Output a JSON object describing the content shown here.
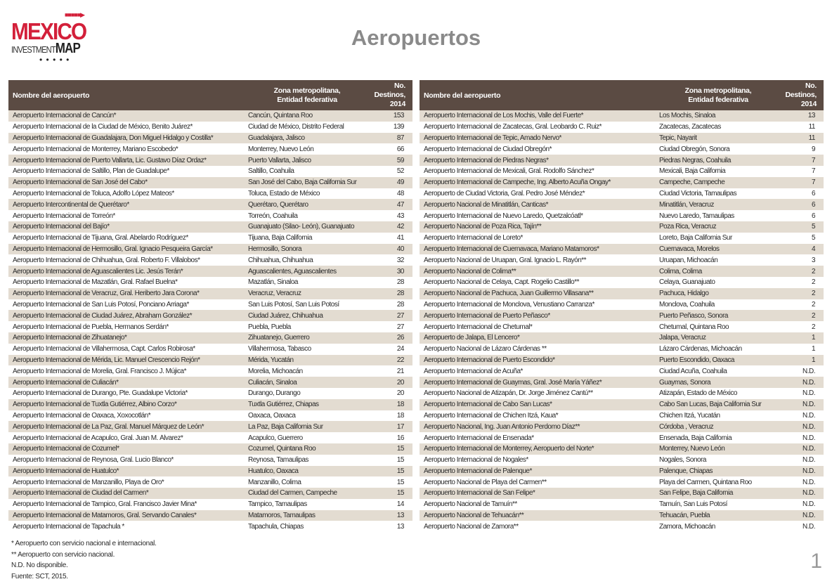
{
  "logo": {
    "text_top": "MEXICO",
    "text_left": "INVESTMENT",
    "text_right": "MAP"
  },
  "title": "Aeropuertos",
  "headers": {
    "name": "Nombre del aeropuerto",
    "zone_line1": "Zona metropolitana,",
    "zone_line2": "Entidad federativa",
    "dest_line1": "No. Destinos,",
    "dest_line2": "2014"
  },
  "left_rows": [
    [
      "Aeropuerto Internacional de Cancún*",
      "Cancún, Quintana Roo",
      "153"
    ],
    [
      "Aeropuerto Internacional de la Ciudad de México, Benito Juárez*",
      "Ciudad de México, Distrito Federal",
      "139"
    ],
    [
      "Aeropuerto Internacional de Guadalajara, Don Miguel Hidalgo y Costilla*",
      "Guadalajara, Jalisco",
      "87"
    ],
    [
      "Aeropuerto Internacional de Monterrey, Mariano Escobedo*",
      "Monterrey, Nuevo León",
      "66"
    ],
    [
      "Aeropuerto Internacional de Puerto Vallarta, Lic. Gustavo Díaz Ordaz*",
      "Puerto Vallarta, Jalisco",
      "59"
    ],
    [
      "Aeropuerto Internacional de Saltillo, Plan de Guadalupe*",
      "Saltillo, Coahuila",
      "52"
    ],
    [
      "Aeropuerto Internacional de San José del Cabo*",
      "San José del Cabo, Baja California Sur",
      "49"
    ],
    [
      "Aeropuerto Internacional de Toluca, Adolfo López Mateos*",
      "Toluca, Estado de México",
      "48"
    ],
    [
      "Aeropuerto Intercontinental de Querétaro*",
      "Querétaro, Querétaro",
      "47"
    ],
    [
      "Aeropuerto Internacional de Torreón*",
      "Torreón, Coahuila",
      "43"
    ],
    [
      "Aeropuerto Internacional del Bajío*",
      "Guanajuato (Silao- León), Guanajuato",
      "42"
    ],
    [
      "Aeropuerto Internacional de Tijuana, Gral. Abelardo Rodríguez*",
      "Tijuana, Baja California",
      "41"
    ],
    [
      "Aeropuerto Internacional de Hermosillo, Gral. Ignacio Pesqueira García*",
      "Hermosillo, Sonora",
      "40"
    ],
    [
      "Aeropuerto Internacional de Chihuahua, Gral. Roberto F. Villalobos*",
      "Chihuahua, Chihuahua",
      "32"
    ],
    [
      "Aeropuerto Internacional de Aguascalientes Lic. Jesús Terán*",
      "Aguascalientes, Aguascalientes",
      "30"
    ],
    [
      "Aeropuerto Internacional de Mazatlán, Gral. Rafael Buelna*",
      "Mazatlán, Sinaloa",
      "28"
    ],
    [
      "Aeropuerto Internacional de Veracruz, Gral. Heriberto Jara Corona*",
      "Veracruz, Veracruz",
      "28"
    ],
    [
      "Aeropuerto Internacional de San Luis Potosí, Ponciano Arriaga*",
      "San Luis Potosí, San Luis Potosí",
      "28"
    ],
    [
      "Aeropuerto Internacional de Ciudad Juárez, Abraham González*",
      "Ciudad Juárez, Chihuahua",
      "27"
    ],
    [
      "Aeropuerto Internacional de Puebla, Hermanos Serdán*",
      "Puebla, Puebla",
      "27"
    ],
    [
      "Aeropuerto Internacional de Zihuatanejo*",
      "Zihuatanejo, Guerrero",
      "26"
    ],
    [
      "Aeropuerto Internacional de Villahermosa, Capt. Carlos Robirosa*",
      "Villahermosa, Tabasco",
      "24"
    ],
    [
      "Aeropuerto Internacional de Mérida, Lic. Manuel Crescencio Rejón*",
      "Mérida, Yucatán",
      "22"
    ],
    [
      "Aeropuerto Internacional de Morelia, Gral. Francisco J. Mújica*",
      "Morelia, Michoacán",
      "21"
    ],
    [
      "Aeropuerto Internacional de Culiacán*",
      "Culiacán, Sinaloa",
      "20"
    ],
    [
      "Aeropuerto Internacional de Durango, Pte. Guadalupe Victoria*",
      "Durango, Durango",
      "20"
    ],
    [
      "Aeropuerto Internacional de Tuxtla Gutiérrez, Albino Corzo*",
      "Tuxtla Gutiérrez, Chiapas",
      "18"
    ],
    [
      "Aeropuerto Internacional de Oaxaca, Xoxocotlán*",
      "Oaxaca, Oaxaca",
      "18"
    ],
    [
      "Aeropuerto Internacional de La Paz, Gral. Manuel Márquez de León*",
      "La Paz, Baja California Sur",
      "17"
    ],
    [
      "Aeropuerto Internacional de Acapulco, Gral. Juan M. Álvarez*",
      "Acapulco, Guerrero",
      "16"
    ],
    [
      "Aeropuerto Internacional de Cozumel*",
      "Cozumel, Quintana Roo",
      "15"
    ],
    [
      "Aeropuerto Internacional de Reynosa, Gral. Lucio Blanco*",
      "Reynosa, Tamaulipas",
      "15"
    ],
    [
      "Aeropuerto Internacional de Huatulco*",
      "Huatulco, Oaxaca",
      "15"
    ],
    [
      "Aeropuerto Internacional de Manzanillo, Playa de Oro*",
      "Manzanillo, Colima",
      "15"
    ],
    [
      "Aeropuerto Internacional de Ciudad del Carmen*",
      "Ciudad del Carmen, Campeche",
      "15"
    ],
    [
      "Aeropuerto Internacional de Tampico, Gral. Francisco Javier Mina*",
      "Tampico, Tamaulipas",
      "14"
    ],
    [
      "Aeropuerto Internacional de Matamoros, Gral. Servando Canales*",
      "Matamoros, Tamaulipas",
      "13"
    ],
    [
      "Aeropuerto Internacional de Tapachula *",
      "Tapachula, Chiapas",
      "13"
    ]
  ],
  "right_rows": [
    [
      "Aeropuerto Internacional de Los Mochis, Valle del Fuerte*",
      "Los Mochis, Sinaloa",
      "13"
    ],
    [
      "Aeropuerto Internacional de Zacatecas, Gral. Leobardo C. Ruiz*",
      "Zacatecas, Zacatecas",
      "11"
    ],
    [
      "Aeropuerto Internacional de Tepic, Amado Nervo*",
      "Tepic, Nayarit",
      "11"
    ],
    [
      "Aeropuerto Internacional de Ciudad Obregón*",
      "Ciudad Obregón, Sonora",
      "9"
    ],
    [
      "Aeropuerto Internacional de Piedras Negras*",
      "Piedras Negras, Coahuila",
      "7"
    ],
    [
      "Aeropuerto Internacional de Mexicali, Gral. Rodolfo Sánchez*",
      "Mexicali, Baja California",
      "7"
    ],
    [
      "Aeropuerto Internacional de Campeche, Ing. Alberto Acuña Ongay*",
      "Campeche, Campeche",
      "7"
    ],
    [
      "Aeropuerto de Ciudad Victoria, Gral. Pedro José Méndez*",
      "Ciudad Victoria, Tamaulipas",
      "6"
    ],
    [
      "Aeropuerto Nacional de Minatitlán, Canticas*",
      "Minatitlán, Veracruz",
      "6"
    ],
    [
      "Aeropuerto Internacional de Nuevo Laredo, Quetzalcóatl*",
      "Nuevo Laredo, Tamaulipas",
      "6"
    ],
    [
      "Aeropuerto Nacional de Poza Rica, Tajín**",
      "Poza Rica, Veracruz",
      "5"
    ],
    [
      "Aeropuerto Internacional de Loreto*",
      "Loreto, Baja California Sur",
      "5"
    ],
    [
      "Aeropuerto Internacional de Cuernavaca, Mariano Matamoros*",
      "Cuernavaca, Morelos",
      "4"
    ],
    [
      "Aeropuerto Nacional de Uruapan, Gral. Ignacio L. Rayón**",
      "Uruapan, Michoacán",
      "3"
    ],
    [
      "Aeropuerto Nacional de Colima**",
      "Colima, Colima",
      "2"
    ],
    [
      "Aeropuerto Nacional de Celaya, Capt. Rogelio Castillo**",
      "Celaya, Guanajuato",
      "2"
    ],
    [
      "Aeropuerto Nacional de Pachuca, Juan Guillermo Villasana**",
      "Pachuca, Hidalgo",
      "2"
    ],
    [
      "Aeropuerto Internacional de Monclova, Venustiano Carranza*",
      "Monclova, Coahuila",
      "2"
    ],
    [
      "Aeropuerto Internacional de Puerto Peñasco*",
      "Puerto Peñasco, Sonora",
      "2"
    ],
    [
      "Aeropuerto Internacional de Chetumal*",
      "Chetumal, Quintana Roo",
      "2"
    ],
    [
      "Aeropuerto de Jalapa, El Lencero*",
      "Jalapa, Veracruz",
      "1"
    ],
    [
      "Aeropuerto Nacional de Lázaro Cárdenas **",
      "Lázaro Cárdenas, Michoacán",
      "1"
    ],
    [
      "Aeropuerto Internacional de Puerto Escondido*",
      "Puerto Escondido, Oaxaca",
      "1"
    ],
    [
      "Aeropuerto Internacional de Acuña*",
      "Ciudad Acuña, Coahuila",
      "N.D."
    ],
    [
      "Aeropuerto Internacional de Guaymas, Gral. José María Yáñez*",
      "Guaymas, Sonora",
      "N.D."
    ],
    [
      "Aeropuerto Nacional de Atizapán, Dr. Jorge Jiménez Cantú**",
      "Atizapán, Estado de México",
      "N.D."
    ],
    [
      "Aeropuerto Internacional de Cabo San Lucas*",
      "Cabo San Lucas, Baja California Sur",
      "N.D."
    ],
    [
      "Aeropuerto Internacional de Chichen Itzá, Kaua*",
      "Chichen Itzá, Yucatán",
      "N.D."
    ],
    [
      "Aeropuerto Nacional, Ing. Juan Antonio Perdomo Díaz**",
      "Córdoba , Veracruz",
      "N.D."
    ],
    [
      "Aeropuerto Internacional de Ensenada*",
      "Ensenada, Baja California",
      "N.D."
    ],
    [
      "Aeropuerto Internacional de Monterrey, Aeropuerto del Norte*",
      "Monterrey, Nuevo León",
      "N.D."
    ],
    [
      "Aeropuerto Internacional de Nogales*",
      "Nogales, Sonora",
      "N.D."
    ],
    [
      "Aeropuerto Internacional de Palenque*",
      "Palenque, Chiapas",
      "N.D."
    ],
    [
      "Aeropuerto Nacional de Playa del Carmen**",
      "Playa del Carmen, Quintana Roo",
      "N.D."
    ],
    [
      "Aeropuerto Internacional de San Felipe*",
      "San Felipe, Baja California",
      "N.D."
    ],
    [
      "Aeropuerto Nacional de Tamuín**",
      "Tamuín, San Luis Potosí",
      "N.D."
    ],
    [
      "Aeropuerto Nacional de Tehuacán**",
      "Tehuacán, Puebla",
      "N.D."
    ],
    [
      "Aeropuerto Nacional de Zamora**",
      "Zamora, Michoacán",
      "N.D."
    ]
  ],
  "notes": [
    "* Aeropuerto con servicio nacional e internacional.",
    "** Aeropuerto con servicio nacional.",
    "N.D. No disponible.",
    "Fuente: SCT, 2015."
  ],
  "page_number": "1",
  "colors": {
    "header_bg": "#5b4b43",
    "stripe": "#e3dcd1",
    "logo_red": "#d3203a",
    "title": "#8a8a8a"
  }
}
